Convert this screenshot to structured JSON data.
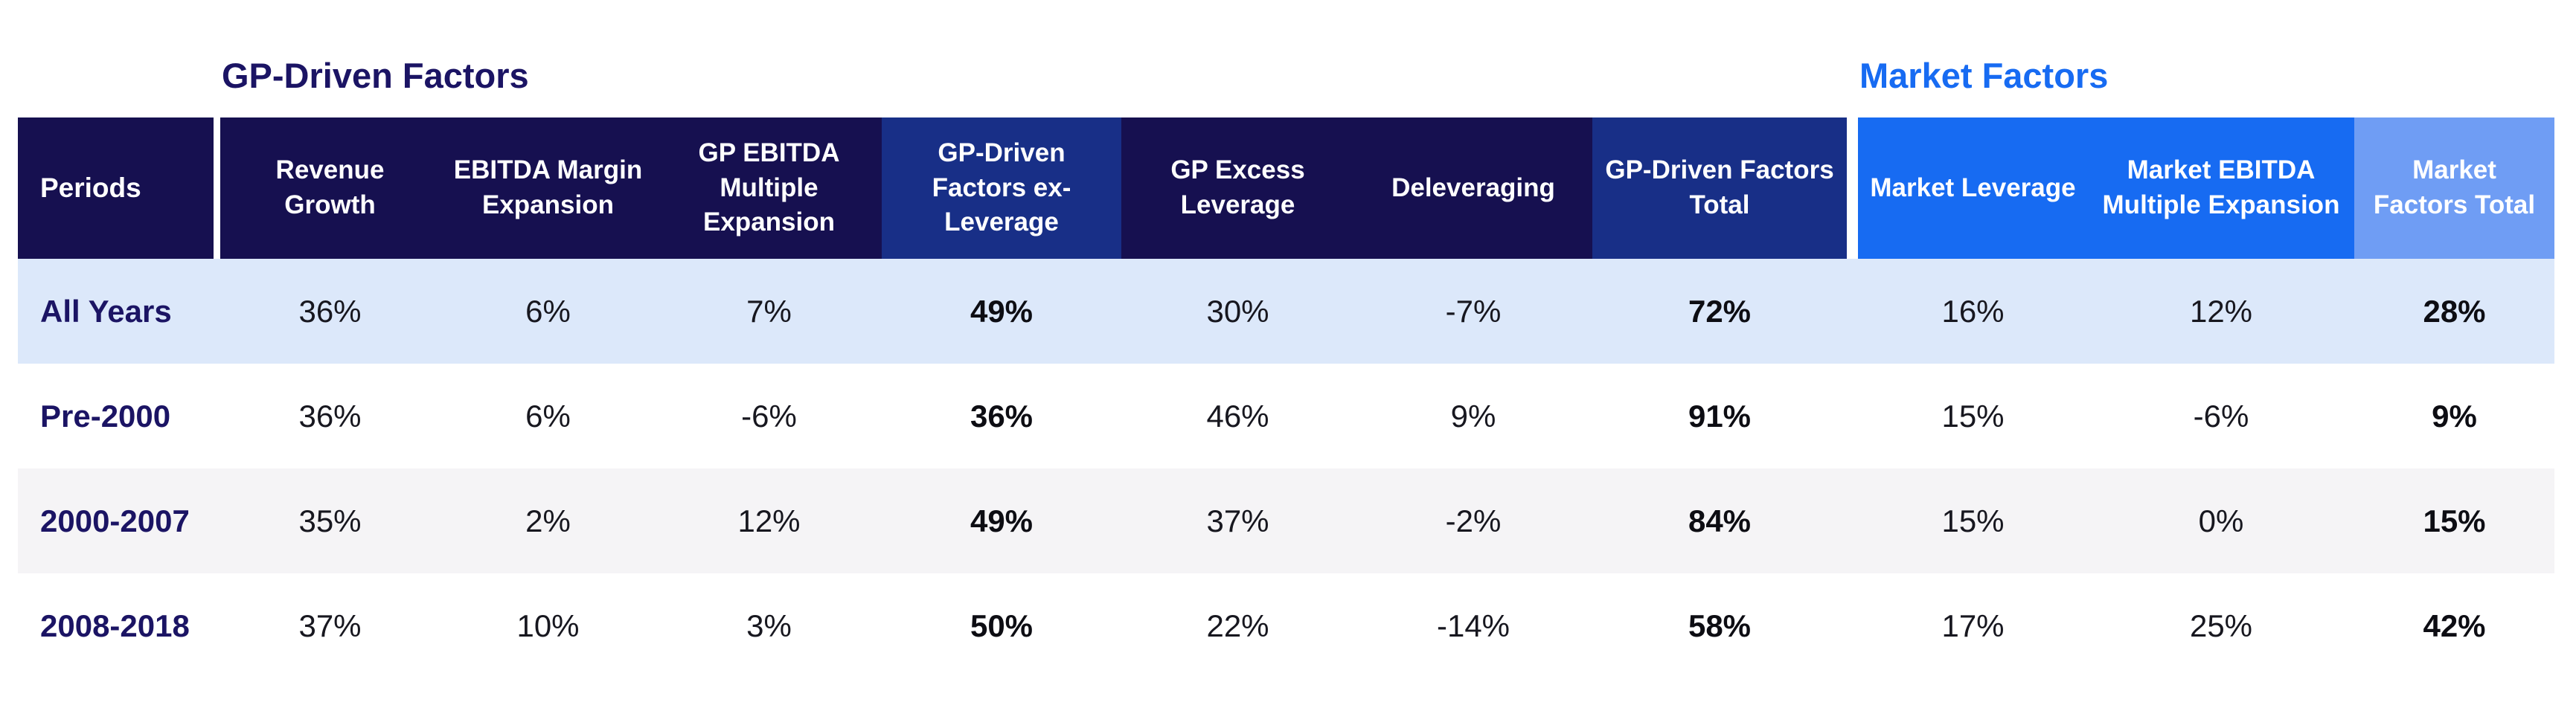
{
  "chart_data": {
    "type": "table",
    "group_titles": {
      "gp": "GP-Driven Factors",
      "market": "Market Factors"
    },
    "periods_header": "Periods",
    "columns": [
      {
        "label": "Revenue Growth",
        "group": "GP-Driven Factors",
        "header_tone": "navy",
        "bold_values": false
      },
      {
        "label": "EBITDA Margin Expansion",
        "group": "GP-Driven Factors",
        "header_tone": "navy",
        "bold_values": false
      },
      {
        "label": "GP EBITDA Multiple Expansion",
        "group": "GP-Driven Factors",
        "header_tone": "navy",
        "bold_values": false
      },
      {
        "label": "GP-Driven Factors ex-Leverage",
        "group": "GP-Driven Factors",
        "header_tone": "medium-blue",
        "bold_values": true
      },
      {
        "label": "GP Excess Leverage",
        "group": "GP-Driven Factors",
        "header_tone": "navy",
        "bold_values": false
      },
      {
        "label": "Deleveraging",
        "group": "GP-Driven Factors",
        "header_tone": "navy",
        "bold_values": false
      },
      {
        "label": "GP-Driven Factors Total",
        "group": "GP-Driven Factors",
        "header_tone": "medium-blue",
        "bold_values": true
      },
      {
        "label": "Market Leverage",
        "group": "Market Factors",
        "header_tone": "bright-blue",
        "bold_values": false
      },
      {
        "label": "Market EBITDA Multiple Expansion",
        "group": "Market Factors",
        "header_tone": "bright-blue",
        "bold_values": false
      },
      {
        "label": "Market Factors Total",
        "group": "Market Factors",
        "header_tone": "light-blue",
        "bold_values": true
      }
    ],
    "rows": [
      {
        "period": "All Years",
        "values": [
          "36%",
          "6%",
          "7%",
          "49%",
          "30%",
          "-7%",
          "72%",
          "16%",
          "12%",
          "28%"
        ]
      },
      {
        "period": "Pre-2000",
        "values": [
          "36%",
          "6%",
          "-6%",
          "36%",
          "46%",
          "9%",
          "91%",
          "15%",
          "-6%",
          "9%"
        ]
      },
      {
        "period": "2000-2007",
        "values": [
          "35%",
          "2%",
          "12%",
          "49%",
          "37%",
          "-2%",
          "84%",
          "15%",
          "0%",
          "15%"
        ]
      },
      {
        "period": "2008-2018",
        "values": [
          "37%",
          "10%",
          "3%",
          "50%",
          "22%",
          "-14%",
          "58%",
          "17%",
          "25%",
          "42%"
        ]
      }
    ],
    "colors": {
      "header_navy": "#161050",
      "header_medium_blue": "#182F87",
      "header_bright_blue": "#176BF2",
      "header_light_blue": "#6F9DF4",
      "row_highlight": "#DCE8FA",
      "row_alt_gray": "#F5F4F6",
      "gp_title_text": "#1B1464",
      "market_title_text": "#176BF2",
      "value_text": "#17171F"
    },
    "layout_hints": {
      "legend_position": "none",
      "grid": "off"
    }
  }
}
